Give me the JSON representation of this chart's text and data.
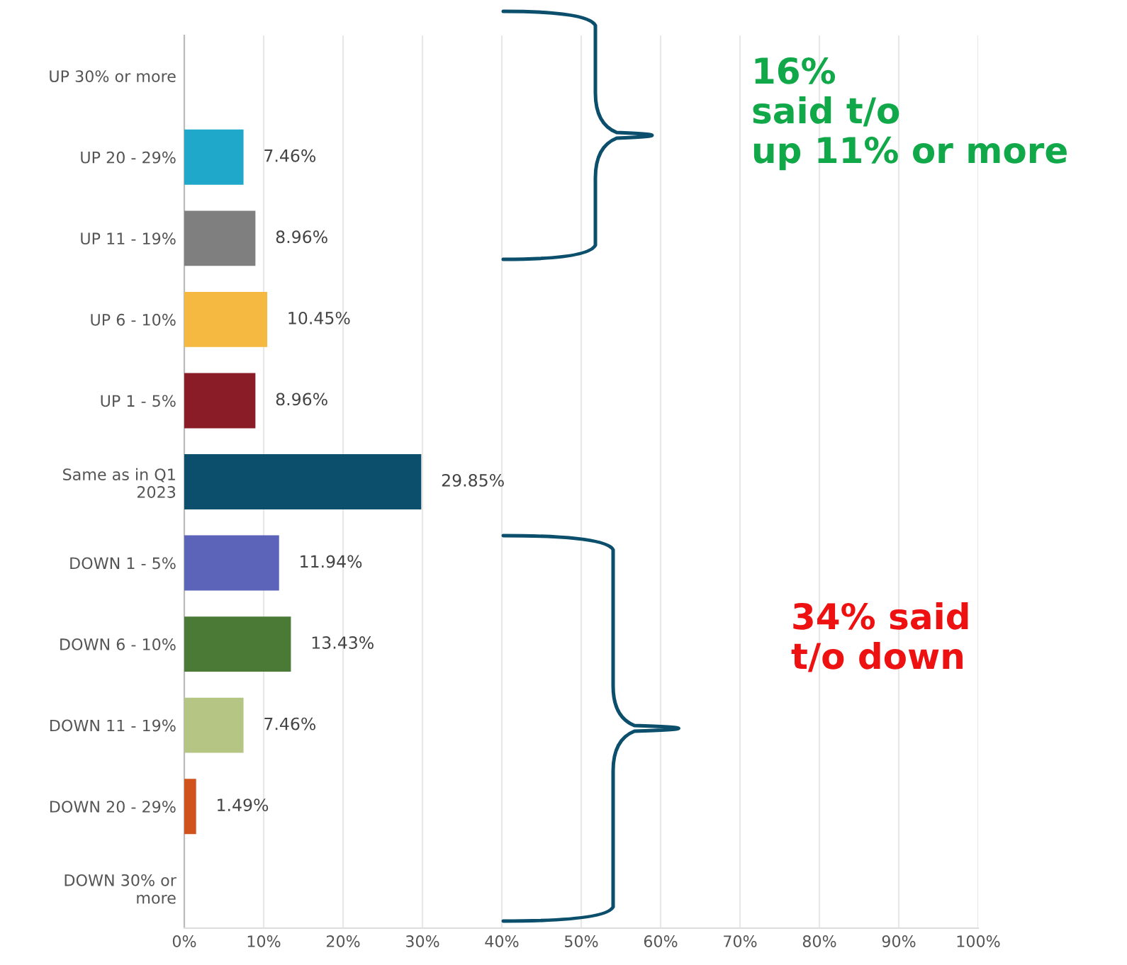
{
  "chart_data": {
    "type": "bar",
    "orientation": "horizontal",
    "categories": [
      "UP 30% or more",
      "UP 20 - 29%",
      "UP 11 - 19%",
      "UP 6 - 10%",
      "UP 1 - 5%",
      "Same as in Q1\n2023",
      "DOWN 1 - 5%",
      "DOWN 6 - 10%",
      "DOWN 11 - 19%",
      "DOWN 20 - 29%",
      "DOWN 30% or\nmore"
    ],
    "values": [
      0,
      7.46,
      8.96,
      10.45,
      8.96,
      29.85,
      11.94,
      13.43,
      7.46,
      1.49,
      0
    ],
    "value_labels": [
      null,
      "7.46%",
      "8.96%",
      "10.45%",
      "8.96%",
      "29.85%",
      "11.94%",
      "13.43%",
      "7.46%",
      "1.49%",
      null
    ],
    "colors": [
      null,
      "#1fa8c9",
      "#7f7f7f",
      "#f5b840",
      "#8a1c28",
      "#0b4f6c",
      "#5b64b8",
      "#4a7a35",
      "#b5c584",
      "#d0531e",
      null
    ],
    "xlim": [
      0,
      100
    ],
    "xticks": [
      {
        "value": 0,
        "label": "0%"
      },
      {
        "value": 10,
        "label": "10%"
      },
      {
        "value": 20,
        "label": "20%"
      },
      {
        "value": 30,
        "label": "30%"
      },
      {
        "value": 40,
        "label": "40%"
      },
      {
        "value": 50,
        "label": "50%"
      },
      {
        "value": 60,
        "label": "60%"
      },
      {
        "value": 70,
        "label": "70%"
      },
      {
        "value": 80,
        "label": "80%"
      },
      {
        "value": 90,
        "label": "90%"
      },
      {
        "value": 100,
        "label": "100%"
      }
    ],
    "grid": "x",
    "legend": false,
    "annotations": [
      "16%\nsaid t/o\nup 11% or more",
      "34% said\nt/o down"
    ]
  }
}
